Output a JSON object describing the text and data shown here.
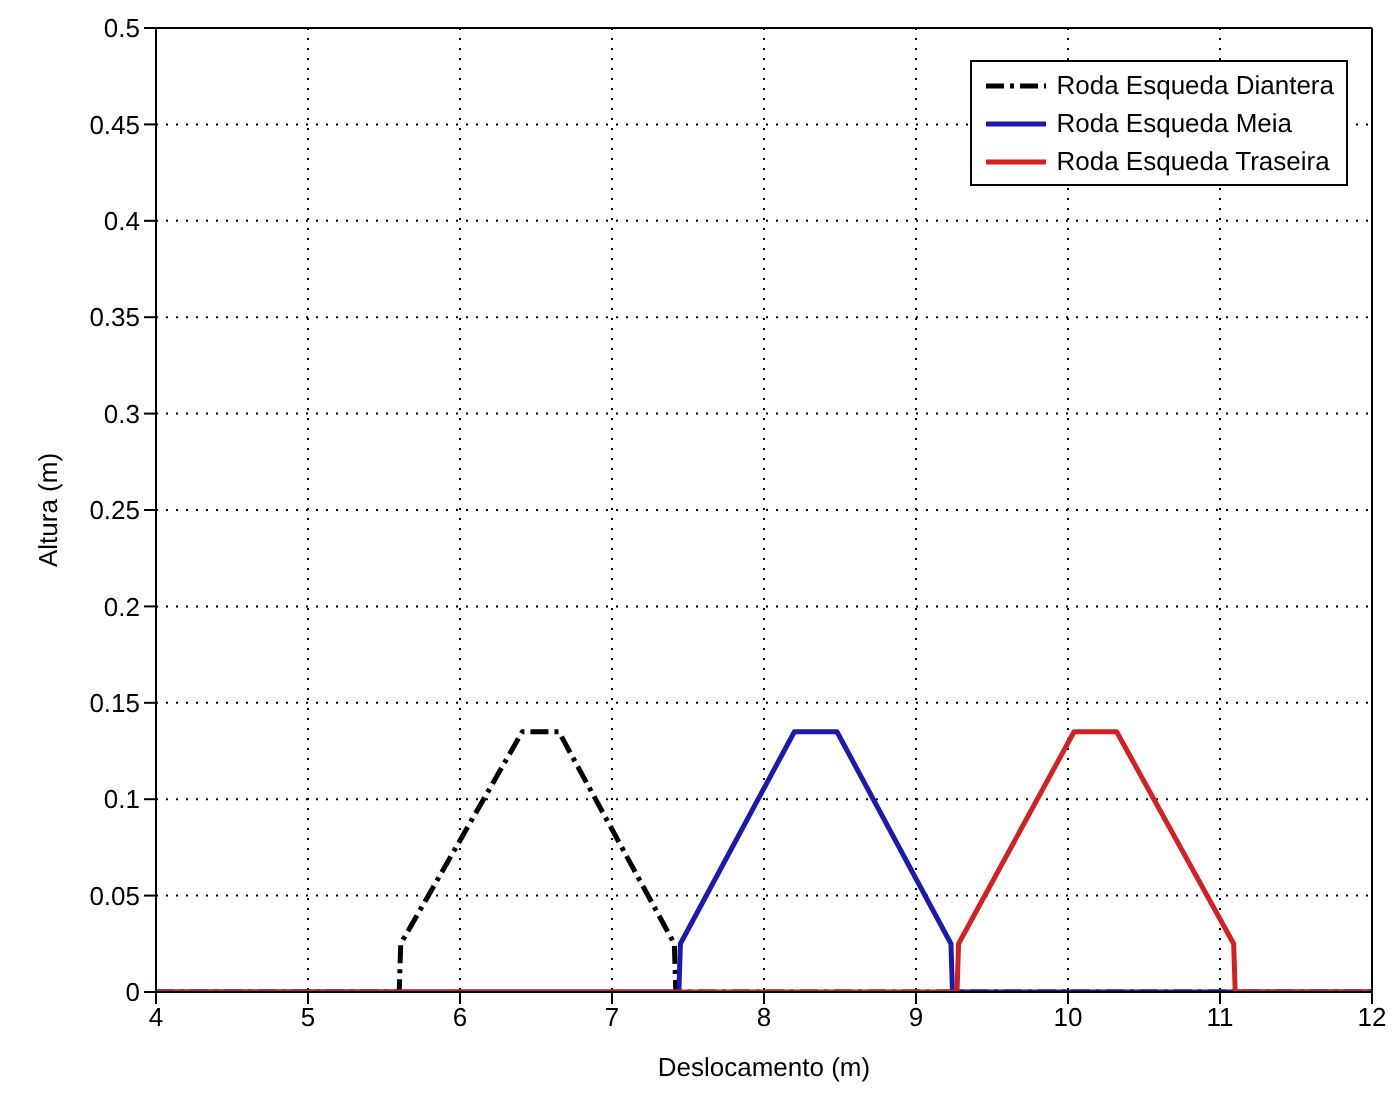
{
  "chart_data": {
    "type": "line",
    "xlabel": "Deslocamento (m)",
    "ylabel": "Altura (m)",
    "xlim": [
      4,
      12
    ],
    "xticks": [
      4,
      5,
      6,
      7,
      8,
      9,
      10,
      11,
      12
    ],
    "ylim": [
      0,
      0.5
    ],
    "yticks": [
      0,
      0.05,
      0.1,
      0.15,
      0.2,
      0.25,
      0.3,
      0.35,
      0.4,
      0.45,
      0.5
    ],
    "grid": true,
    "legend": "top right",
    "marker": "none",
    "series": [
      {
        "name": "Roda Esqueda Diantera",
        "color": "#000000",
        "line_style": "dashdot",
        "x": [
          4,
          5.6,
          5.61,
          6.41,
          6.65,
          7.41,
          7.42,
          12
        ],
        "values": [
          0,
          0,
          0.025,
          0.135,
          0.135,
          0.025,
          0,
          0
        ]
      },
      {
        "name": "Roda Esqueda Meia",
        "color": "#1a1ab0",
        "line_style": "solid",
        "x": [
          4,
          7.44,
          7.45,
          8.2,
          8.48,
          9.23,
          9.24,
          12
        ],
        "values": [
          0,
          0,
          0.025,
          0.135,
          0.135,
          0.025,
          0,
          0
        ]
      },
      {
        "name": "Roda Esqueda Traseira",
        "color": "#d42020",
        "line_style": "solid",
        "x": [
          4,
          9.27,
          9.28,
          10.04,
          10.32,
          11.09,
          11.1,
          12
        ],
        "values": [
          0,
          0,
          0.025,
          0.135,
          0.135,
          0.025,
          0,
          0
        ]
      }
    ]
  }
}
